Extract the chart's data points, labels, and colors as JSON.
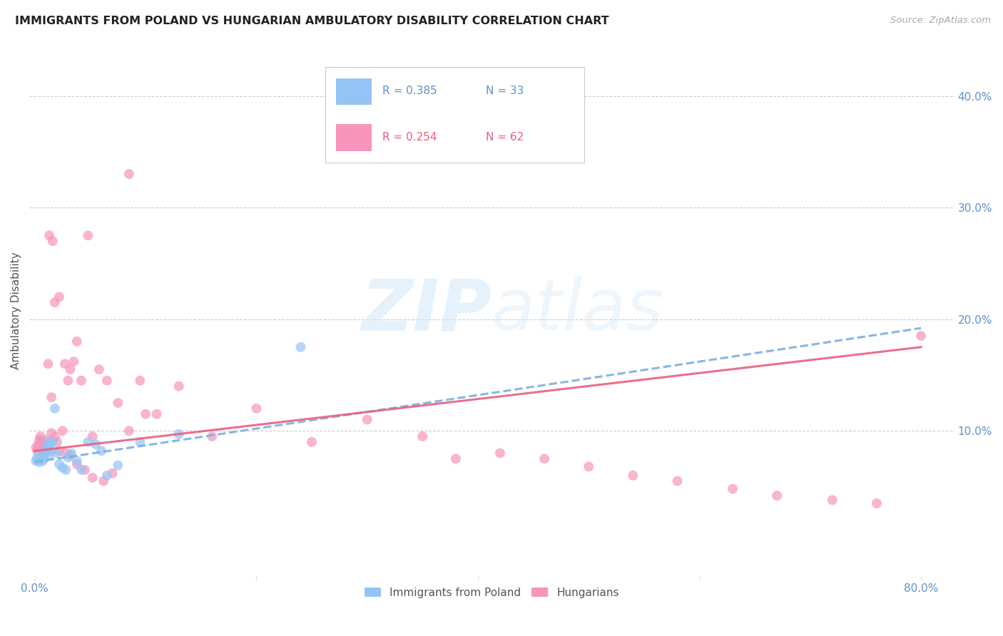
{
  "title": "IMMIGRANTS FROM POLAND VS HUNGARIAN AMBULATORY DISABILITY CORRELATION CHART",
  "source": "Source: ZipAtlas.com",
  "ylabel": "Ambulatory Disability",
  "x_tick_labels": [
    "0.0%",
    "",
    "",
    "",
    "80.0%"
  ],
  "x_tick_values": [
    0.0,
    0.2,
    0.4,
    0.6,
    0.8
  ],
  "y_tick_labels": [
    "10.0%",
    "20.0%",
    "30.0%",
    "40.0%"
  ],
  "y_tick_values": [
    0.1,
    0.2,
    0.3,
    0.4
  ],
  "xlim": [
    -0.005,
    0.83
  ],
  "ylim": [
    -0.03,
    0.445
  ],
  "legend_label1": "Immigrants from Poland",
  "legend_label2": "Hungarians",
  "R1": "0.385",
  "N1": "33",
  "R2": "0.254",
  "N2": "62",
  "color_poland": "#94c4f5",
  "color_hungarian": "#f794bc",
  "color_poland_line": "#7ab0e0",
  "color_hungarian_line": "#e86080",
  "color_ticks_blue": "#6090c8",
  "color_ticks_pink": "#e86080",
  "watermark_color": "#d0e8fa",
  "poland_x": [
    0.001,
    0.002,
    0.003,
    0.004,
    0.005,
    0.006,
    0.007,
    0.008,
    0.009,
    0.01,
    0.011,
    0.012,
    0.013,
    0.014,
    0.015,
    0.016,
    0.018,
    0.02,
    0.022,
    0.025,
    0.028,
    0.03,
    0.033,
    0.038,
    0.042,
    0.048,
    0.055,
    0.06,
    0.065,
    0.075,
    0.095,
    0.13,
    0.24
  ],
  "poland_y": [
    0.073,
    0.076,
    0.074,
    0.072,
    0.075,
    0.077,
    0.073,
    0.075,
    0.08,
    0.085,
    0.082,
    0.09,
    0.078,
    0.088,
    0.082,
    0.09,
    0.12,
    0.08,
    0.07,
    0.067,
    0.065,
    0.076,
    0.08,
    0.073,
    0.065,
    0.09,
    0.088,
    0.082,
    0.06,
    0.069,
    0.09,
    0.097,
    0.175
  ],
  "hungarian_x": [
    0.001,
    0.002,
    0.003,
    0.004,
    0.005,
    0.006,
    0.007,
    0.008,
    0.009,
    0.01,
    0.011,
    0.012,
    0.013,
    0.015,
    0.016,
    0.018,
    0.02,
    0.022,
    0.025,
    0.027,
    0.03,
    0.032,
    0.035,
    0.038,
    0.042,
    0.048,
    0.052,
    0.058,
    0.065,
    0.075,
    0.085,
    0.095,
    0.11,
    0.13,
    0.16,
    0.2,
    0.25,
    0.3,
    0.35,
    0.38,
    0.42,
    0.46,
    0.5,
    0.54,
    0.58,
    0.63,
    0.67,
    0.72,
    0.76,
    0.8,
    0.015,
    0.018,
    0.022,
    0.028,
    0.032,
    0.038,
    0.045,
    0.052,
    0.062,
    0.07,
    0.085,
    0.1
  ],
  "hungarian_y": [
    0.085,
    0.082,
    0.088,
    0.092,
    0.095,
    0.09,
    0.08,
    0.083,
    0.088,
    0.092,
    0.085,
    0.16,
    0.275,
    0.098,
    0.27,
    0.215,
    0.09,
    0.22,
    0.1,
    0.16,
    0.145,
    0.155,
    0.162,
    0.18,
    0.145,
    0.275,
    0.095,
    0.155,
    0.145,
    0.125,
    0.1,
    0.145,
    0.115,
    0.14,
    0.095,
    0.12,
    0.09,
    0.11,
    0.095,
    0.075,
    0.08,
    0.075,
    0.068,
    0.06,
    0.055,
    0.048,
    0.042,
    0.038,
    0.035,
    0.185,
    0.13,
    0.095,
    0.082,
    0.08,
    0.078,
    0.07,
    0.065,
    0.058,
    0.055,
    0.062,
    0.33,
    0.115
  ],
  "poland_line_x": [
    0.0,
    0.8
  ],
  "poland_line_y": [
    0.072,
    0.192
  ],
  "hungarian_line_x": [
    0.0,
    0.8
  ],
  "hungarian_line_y": [
    0.082,
    0.175
  ]
}
